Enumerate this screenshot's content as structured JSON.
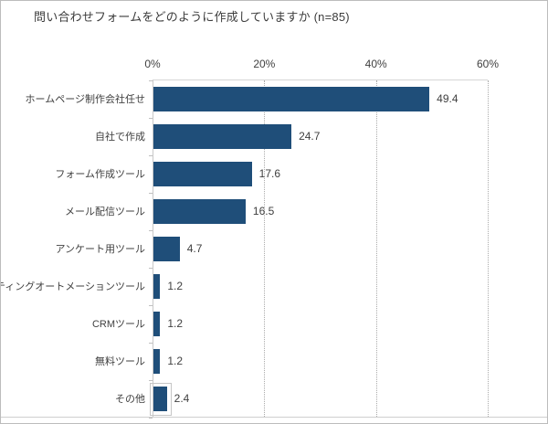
{
  "chart_data": {
    "type": "bar",
    "orientation": "horizontal",
    "title": "問い合わせフォームをどのように作成していますか (n=85)",
    "categories": [
      "ホームページ制作会社任せ",
      "自社で作成",
      "フォーム作成ツール",
      "メール配信ツール",
      "アンケート用ツール",
      "マーケティングオートメーションツール",
      "CRMツール",
      "無料ツール",
      "その他"
    ],
    "values": [
      49.4,
      24.7,
      17.6,
      16.5,
      4.7,
      1.2,
      1.2,
      1.2,
      2.4
    ],
    "value_labels": [
      "49.4",
      "24.7",
      "17.6",
      "16.5",
      "4.7",
      "1.2",
      "1.2",
      "1.2",
      "2.4"
    ],
    "x_ticks": [
      "0%",
      "20%",
      "40%",
      "60%"
    ],
    "x_tick_values": [
      0,
      20,
      40,
      60
    ],
    "xlim": [
      0,
      60
    ],
    "xlabel": "",
    "ylabel": "",
    "grid": "vertical-dotted",
    "legend": "none",
    "selected_category": "その他",
    "bar_color": "#1F4E79"
  },
  "colors": {
    "bar": "#1F4E79",
    "text": "#3f3f3f",
    "grid_dotted": "#ababab",
    "axis_line": "#c9c9c9",
    "frame_border": "#bcbcbc",
    "baseline": "#cfcfcf",
    "background": "#ffffff"
  }
}
